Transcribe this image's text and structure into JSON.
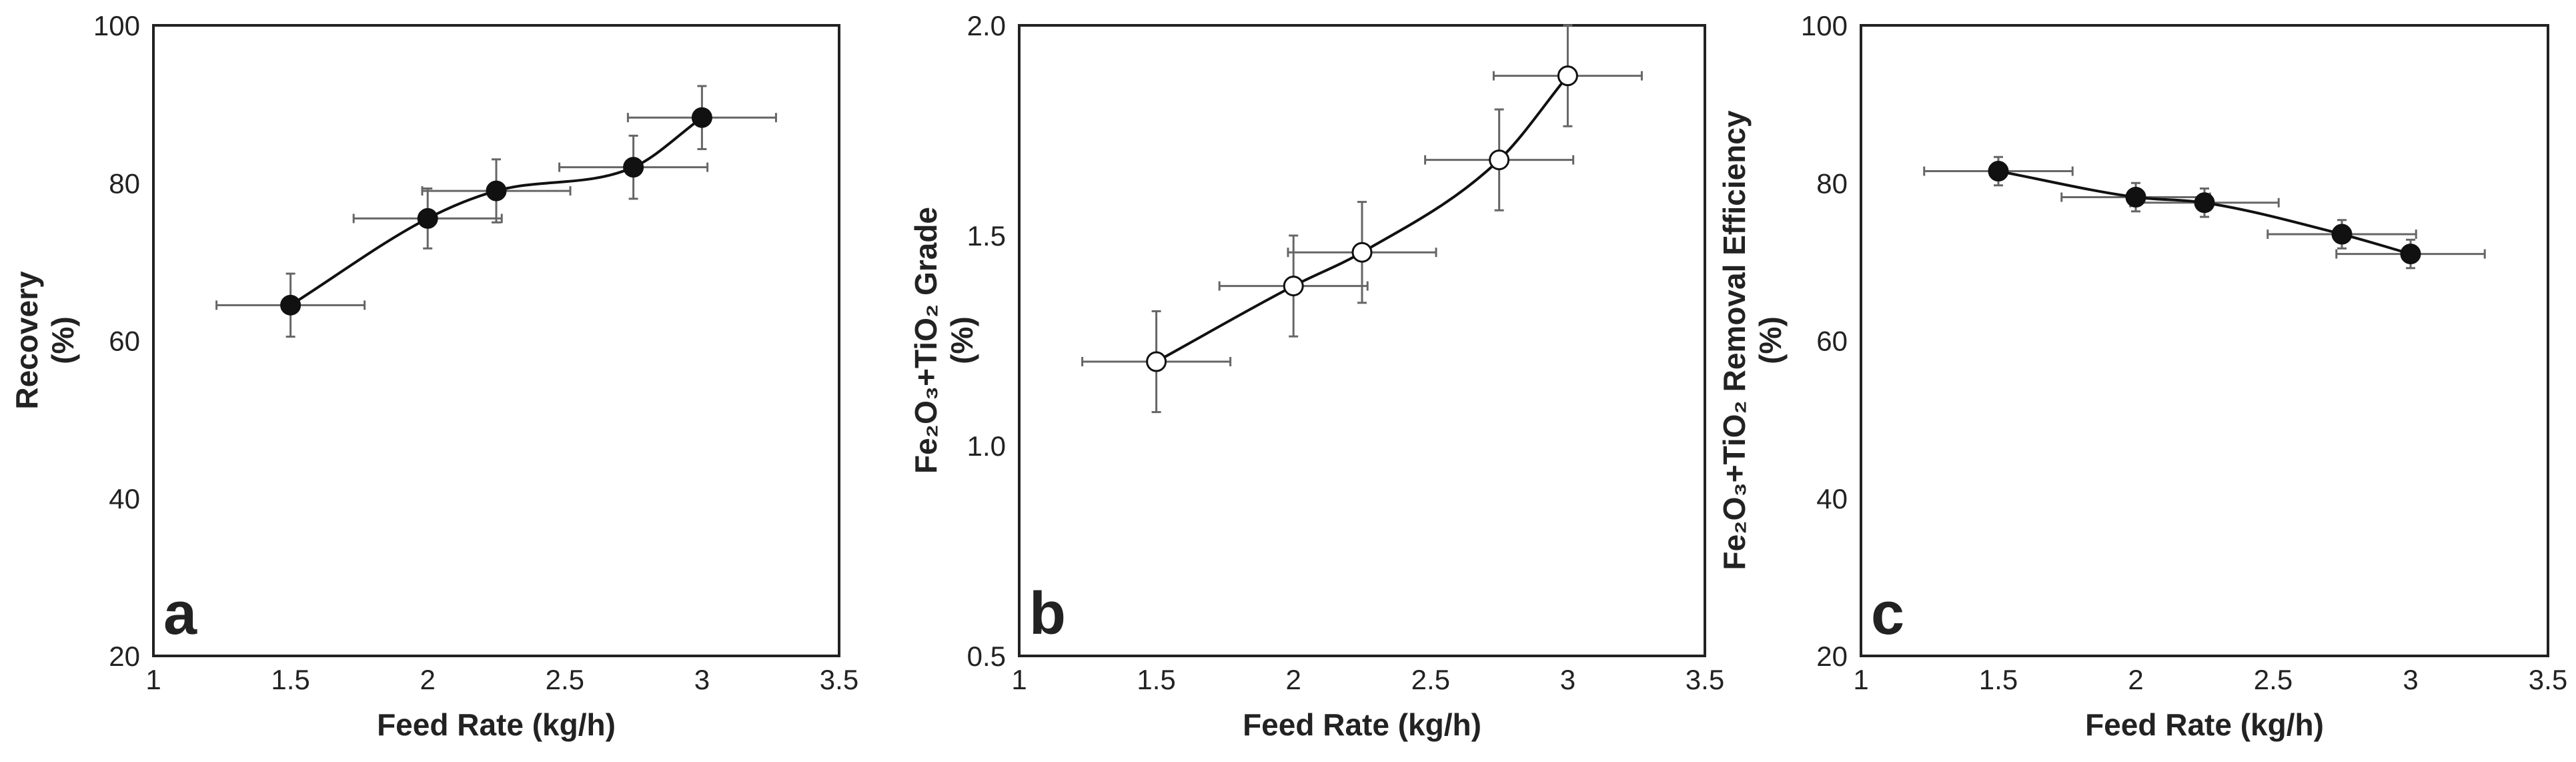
{
  "chart_data": [
    {
      "type": "line",
      "panel_label": "a",
      "xlabel": "Feed Rate (kg/h)",
      "ylabel_line1": "Recovery",
      "ylabel_line2": "(%)",
      "xlim": [
        1,
        3.5
      ],
      "ylim": [
        20,
        100
      ],
      "xticks": [
        "1",
        "1.5",
        "2",
        "2.5",
        "3",
        "3.5"
      ],
      "yticks": [
        "20",
        "40",
        "60",
        "80",
        "100"
      ],
      "marker_fill": "#111111",
      "series": [
        {
          "name": "Recovery",
          "x": [
            1.5,
            2.0,
            2.25,
            2.75,
            3.0
          ],
          "y": [
            64.5,
            75.5,
            79.0,
            82.0,
            88.3
          ],
          "xerr": [
            0.27,
            0.27,
            0.27,
            0.27,
            0.27
          ],
          "yerr": [
            4.0,
            3.8,
            4.0,
            4.0,
            4.0
          ]
        }
      ]
    },
    {
      "type": "line",
      "panel_label": "b",
      "xlabel": "Feed Rate (kg/h)",
      "ylabel_line1": "Fe₂O₃+TiO₂ Grade",
      "ylabel_line2": "(%)",
      "xlim": [
        1,
        3.5
      ],
      "ylim": [
        0.5,
        2.0
      ],
      "xticks": [
        "1",
        "1.5",
        "2",
        "2.5",
        "3",
        "3.5"
      ],
      "yticks": [
        "0.5",
        "1.0",
        "1.5",
        "2.0"
      ],
      "marker_fill": "#ffffff",
      "series": [
        {
          "name": "Fe2O3+TiO2 Grade",
          "x": [
            1.5,
            2.0,
            2.25,
            2.75,
            3.0
          ],
          "y": [
            1.2,
            1.38,
            1.46,
            1.68,
            1.88
          ],
          "xerr": [
            0.27,
            0.27,
            0.27,
            0.27,
            0.27
          ],
          "yerr": [
            0.12,
            0.12,
            0.12,
            0.12,
            0.12
          ]
        }
      ]
    },
    {
      "type": "line",
      "panel_label": "c",
      "xlabel": "Feed Rate (kg/h)",
      "ylabel_line1": "Fe₂O₃+TiO₂ Removal Efficiency",
      "ylabel_line2": "(%)",
      "xlim": [
        1,
        3.5
      ],
      "ylim": [
        20,
        100
      ],
      "xticks": [
        "1",
        "1.5",
        "2",
        "2.5",
        "3",
        "3.5"
      ],
      "yticks": [
        "20",
        "40",
        "60",
        "80",
        "100"
      ],
      "marker_fill": "#111111",
      "series": [
        {
          "name": "Fe2O3+TiO2 Removal Efficiency",
          "x": [
            1.5,
            2.0,
            2.25,
            2.75,
            3.0
          ],
          "y": [
            81.5,
            78.2,
            77.5,
            73.5,
            71.0
          ],
          "xerr": [
            0.27,
            0.27,
            0.27,
            0.27,
            0.27
          ],
          "yerr": [
            1.8,
            1.8,
            1.8,
            1.8,
            1.8
          ]
        }
      ]
    }
  ]
}
